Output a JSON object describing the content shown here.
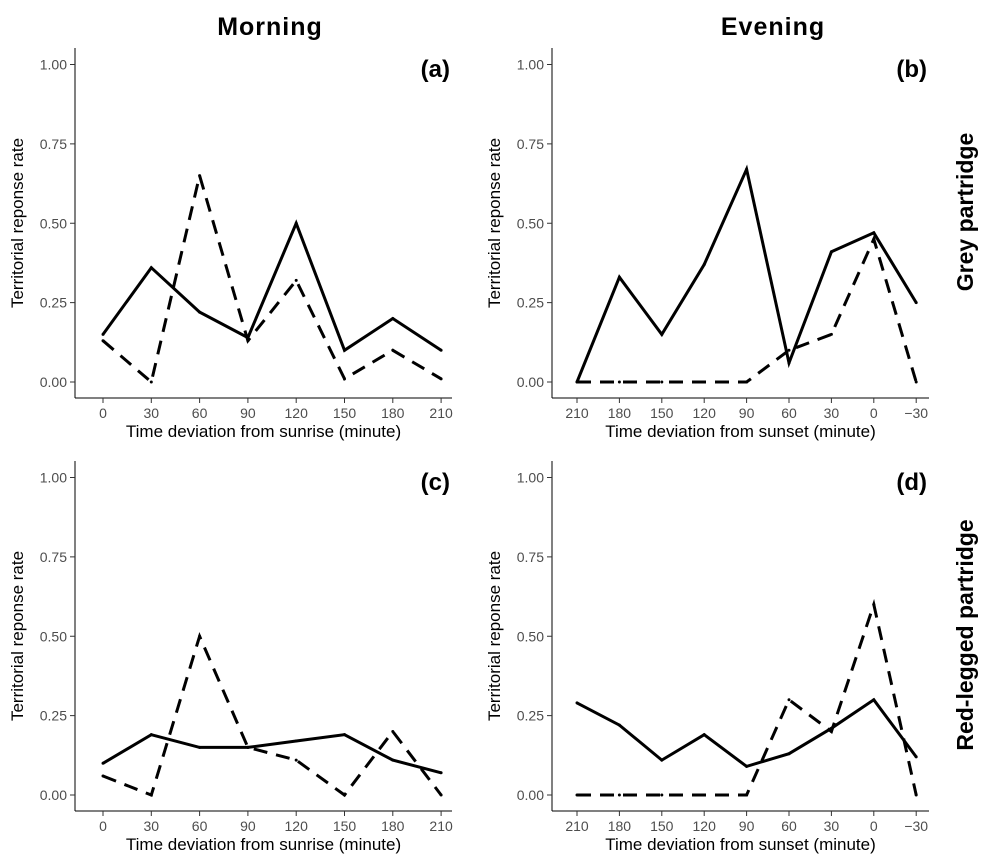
{
  "figure": {
    "column_headers": [
      "Morning",
      "Evening"
    ],
    "row_headers": [
      "Grey partridge",
      "Red-legged partridge"
    ]
  },
  "chart_data": [
    {
      "type": "line",
      "panel": "(a)",
      "xlabel": "Time deviation from sunrise (minute)",
      "ylabel": "Territorial reponse rate",
      "categories": [
        "0",
        "30",
        "60",
        "90",
        "120",
        "150",
        "180",
        "210"
      ],
      "yticks": [
        "0.00",
        "0.25",
        "0.50",
        "0.75",
        "1.00"
      ],
      "ylim": [
        0,
        1
      ],
      "series": [
        {
          "style": "solid",
          "values": [
            0.15,
            0.36,
            0.22,
            0.14,
            0.5,
            0.1,
            0.2,
            0.1
          ]
        },
        {
          "style": "dashed",
          "values": [
            0.13,
            0.0,
            0.65,
            0.13,
            0.32,
            0.01,
            0.1,
            0.01
          ]
        }
      ]
    },
    {
      "type": "line",
      "panel": "(b)",
      "xlabel": "Time deviation from sunset (minute)",
      "ylabel": "Territorial reponse rate",
      "categories": [
        "210",
        "180",
        "150",
        "120",
        "90",
        "60",
        "30",
        "0",
        "−30"
      ],
      "yticks": [
        "0.00",
        "0.25",
        "0.50",
        "0.75",
        "1.00"
      ],
      "ylim": [
        0,
        1
      ],
      "series": [
        {
          "style": "solid",
          "values": [
            0.0,
            0.33,
            0.15,
            0.37,
            0.67,
            0.06,
            0.41,
            0.47,
            0.25
          ]
        },
        {
          "style": "dashed",
          "values": [
            0.0,
            0.0,
            0.0,
            0.0,
            0.0,
            0.1,
            0.15,
            0.45,
            0.0
          ]
        }
      ]
    },
    {
      "type": "line",
      "panel": "(c)",
      "xlabel": "Time deviation from sunrise (minute)",
      "ylabel": "Territorial reponse rate",
      "categories": [
        "0",
        "30",
        "60",
        "90",
        "120",
        "150",
        "180",
        "210"
      ],
      "yticks": [
        "0.00",
        "0.25",
        "0.50",
        "0.75",
        "1.00"
      ],
      "ylim": [
        0,
        1
      ],
      "series": [
        {
          "style": "solid",
          "values": [
            0.1,
            0.19,
            0.15,
            0.15,
            0.17,
            0.19,
            0.11,
            0.07
          ]
        },
        {
          "style": "dashed",
          "values": [
            0.06,
            0.0,
            0.5,
            0.15,
            0.11,
            0.0,
            0.2,
            0.0
          ]
        }
      ]
    },
    {
      "type": "line",
      "panel": "(d)",
      "xlabel": "Time deviation from sunset (minute)",
      "ylabel": "Territorial reponse rate",
      "categories": [
        "210",
        "180",
        "150",
        "120",
        "90",
        "60",
        "30",
        "0",
        "−30"
      ],
      "yticks": [
        "0.00",
        "0.25",
        "0.50",
        "0.75",
        "1.00"
      ],
      "ylim": [
        0,
        1
      ],
      "series": [
        {
          "style": "solid",
          "values": [
            0.29,
            0.22,
            0.11,
            0.19,
            0.09,
            0.13,
            0.21,
            0.3,
            0.12
          ]
        },
        {
          "style": "dashed",
          "values": [
            0.0,
            0.0,
            0.0,
            0.0,
            0.0,
            0.3,
            0.2,
            0.6,
            0.0
          ]
        }
      ]
    }
  ]
}
